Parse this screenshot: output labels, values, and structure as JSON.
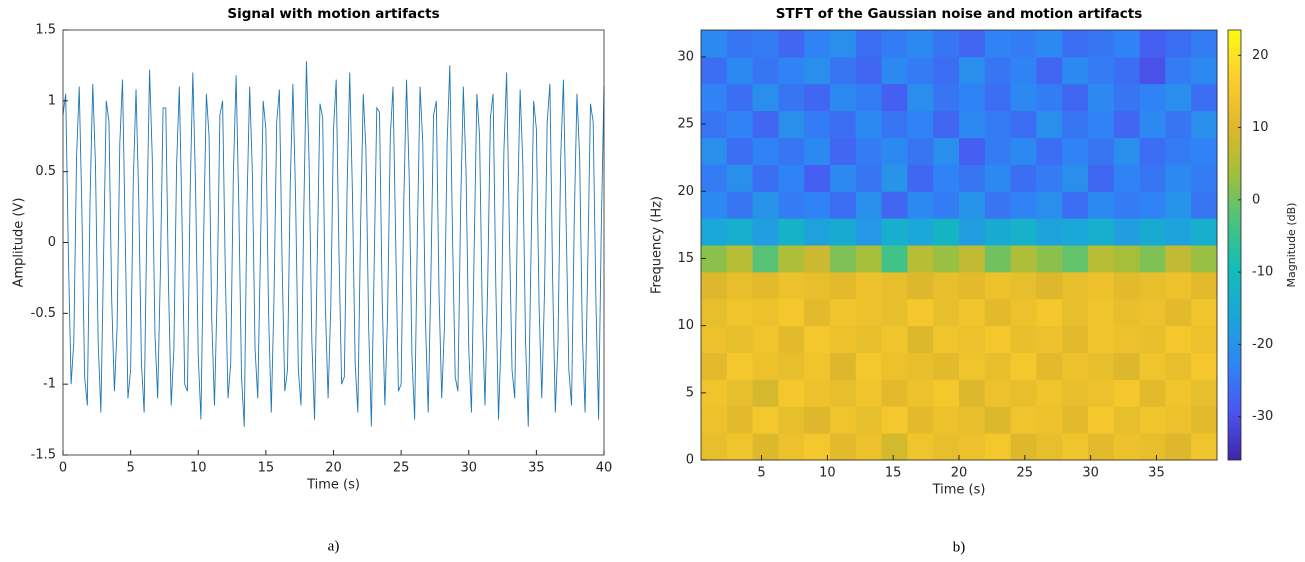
{
  "chart_data": [
    {
      "type": "line",
      "title": "Signal with motion artifacts",
      "xlabel": "Time (s)",
      "ylabel": "Amplitude (V)",
      "caption": "a)",
      "color": "#1f77b4",
      "grid": false,
      "xlim": [
        0,
        40
      ],
      "xticks": [
        0,
        5,
        10,
        15,
        20,
        25,
        30,
        35,
        40
      ],
      "ylim": [
        -1.5,
        1.5
      ],
      "yticks": [
        -1.5,
        -1,
        -0.5,
        0,
        0.5,
        1,
        1.5
      ],
      "x": [
        0,
        0.2,
        0.4,
        0.6,
        0.8,
        1,
        1.2,
        1.4,
        1.6,
        1.8,
        2,
        2.2,
        2.4,
        2.6,
        2.8,
        3,
        3.2,
        3.4,
        3.6,
        3.8,
        4,
        4.2,
        4.4,
        4.6,
        4.8,
        5,
        5.2,
        5.4,
        5.6,
        5.8,
        6,
        6.2,
        6.4,
        6.6,
        6.8,
        7,
        7.2,
        7.4,
        7.6,
        7.8,
        8,
        8.2,
        8.4,
        8.6,
        8.8,
        9,
        9.2,
        9.4,
        9.6,
        9.8,
        10,
        10.2,
        10.4,
        10.6,
        10.8,
        11,
        11.2,
        11.4,
        11.6,
        11.8,
        12,
        12.2,
        12.4,
        12.6,
        12.8,
        13,
        13.2,
        13.4,
        13.6,
        13.8,
        14,
        14.2,
        14.4,
        14.6,
        14.8,
        15,
        15.2,
        15.4,
        15.6,
        15.8,
        16,
        16.2,
        16.4,
        16.6,
        16.8,
        17,
        17.2,
        17.4,
        17.6,
        17.8,
        18,
        18.2,
        18.4,
        18.6,
        18.8,
        19,
        19.2,
        19.4,
        19.6,
        19.8,
        20,
        20.2,
        20.4,
        20.6,
        20.8,
        21,
        21.2,
        21.4,
        21.6,
        21.8,
        22,
        22.2,
        22.4,
        22.6,
        22.8,
        23,
        23.2,
        23.4,
        23.6,
        23.8,
        24,
        24.2,
        24.4,
        24.6,
        24.8,
        25,
        25.2,
        25.4,
        25.6,
        25.8,
        26,
        26.2,
        26.4,
        26.6,
        26.8,
        27,
        27.2,
        27.4,
        27.6,
        27.8,
        28,
        28.2,
        28.4,
        28.6,
        28.8,
        29,
        29.2,
        29.4,
        29.6,
        29.8,
        30,
        30.2,
        30.4,
        30.6,
        30.8,
        31,
        31.2,
        31.4,
        31.6,
        31.8,
        32,
        32.2,
        32.4,
        32.6,
        32.8,
        33,
        33.2,
        33.4,
        33.6,
        33.8,
        34,
        34.2,
        34.4,
        34.6,
        34.8,
        35,
        35.2,
        35.4,
        35.6,
        35.8,
        36,
        36.2,
        36.4,
        36.6,
        36.8,
        37,
        37.2,
        37.4,
        37.6,
        37.8,
        38,
        38.2,
        38.4,
        38.6,
        38.8,
        39,
        39.2,
        39.4,
        39.6,
        39.8,
        40
      ],
      "values": [
        0.9,
        1.05,
        -0.1,
        -1.0,
        -0.7,
        0.6,
        1.1,
        0.2,
        -0.95,
        -1.15,
        0.3,
        1.12,
        0.55,
        -0.7,
        -1.2,
        -0.1,
        1.0,
        0.85,
        -0.4,
        -1.05,
        -0.6,
        0.7,
        1.15,
        0.05,
        -1.1,
        -0.9,
        0.45,
        1.08,
        0.3,
        -0.85,
        -1.2,
        0.15,
        1.22,
        0.6,
        -0.65,
        -1.1,
        -0.2,
        0.95,
        0.95,
        -0.3,
        -1.15,
        -0.75,
        0.55,
        1.1,
        0.15,
        -1.0,
        -1.05,
        0.35,
        1.2,
        0.4,
        -0.8,
        -1.25,
        0.05,
        1.05,
        0.75,
        -0.55,
        -1.15,
        -0.35,
        0.9,
        1.0,
        -0.2,
        -1.1,
        -0.85,
        0.5,
        1.18,
        0.25,
        -0.95,
        -1.3,
        0.25,
        1.1,
        0.5,
        -0.75,
        -1.1,
        -0.05,
        1.0,
        0.8,
        -0.5,
        -1.2,
        -0.4,
        0.85,
        1.08,
        -0.15,
        -1.05,
        -0.9,
        0.4,
        1.12,
        0.3,
        -0.9,
        -1.15,
        0.2,
        1.28,
        0.55,
        -0.7,
        -1.25,
        -0.1,
        0.98,
        0.88,
        -0.45,
        -1.1,
        -0.45,
        0.8,
        1.15,
        -0.05,
        -1.0,
        -0.95,
        0.35,
        1.2,
        0.35,
        -0.85,
        -1.2,
        0.1,
        1.05,
        0.65,
        -0.6,
        -1.3,
        -0.2,
        0.95,
        0.92,
        -0.4,
        -1.15,
        -0.5,
        0.75,
        1.1,
        0.0,
        -1.05,
        -1.0,
        0.3,
        1.15,
        0.45,
        -0.8,
        -1.25,
        0.05,
        1.1,
        0.7,
        -0.55,
        -1.2,
        -0.25,
        0.9,
        1.0,
        -0.35,
        -1.1,
        -0.6,
        0.7,
        1.25,
        0.05,
        -0.95,
        -1.05,
        0.25,
        1.1,
        0.5,
        -0.75,
        -1.2,
        -0.05,
        1.05,
        0.75,
        -0.5,
        -1.15,
        -0.3,
        0.88,
        1.05,
        -0.3,
        -1.25,
        -0.65,
        0.65,
        1.2,
        0.1,
        -0.9,
        -1.1,
        0.2,
        1.08,
        0.55,
        -0.7,
        -1.3,
        -0.1,
        1.0,
        0.8,
        -0.45,
        -1.1,
        -0.35,
        0.85,
        1.12,
        -0.25,
        -1.2,
        -0.7,
        0.6,
        1.15,
        0.15,
        -0.9,
        -1.15,
        0.15,
        1.05,
        0.6,
        -0.65,
        -1.2,
        -0.15,
        0.98,
        0.85,
        -0.4,
        -1.25,
        0.1,
        1.1
      ]
    },
    {
      "type": "heatmap",
      "title": "STFT of the Gaussian noise and motion artifacts",
      "xlabel": "Time (s)",
      "ylabel": "Frequency (Hz)",
      "caption": "b)",
      "colorbar_label": "Magnitude (dB)",
      "xlim": [
        0.4,
        39.6
      ],
      "xticks": [
        5,
        10,
        15,
        20,
        25,
        30,
        35
      ],
      "ylim": [
        0,
        32
      ],
      "yticks": [
        0,
        5,
        10,
        15,
        20,
        25,
        30
      ],
      "clim": [
        -36,
        23.5
      ],
      "cticks": [
        -30,
        -20,
        -10,
        0,
        10,
        20
      ],
      "colormap": [
        "#3e26a8",
        "#4a55f0",
        "#2f85f5",
        "#1ba6d8",
        "#12bdb7",
        "#4ac37f",
        "#a2bf3c",
        "#e0b82b",
        "#fcce2e",
        "#f9fb15"
      ],
      "x": [
        1.38,
        3.34,
        5.3,
        7.26,
        9.22,
        11.18,
        13.14,
        15.1,
        17.06,
        19.02,
        20.98,
        22.94,
        24.9,
        26.86,
        28.82,
        30.78,
        32.74,
        34.7,
        36.66,
        38.62
      ],
      "y": [
        1,
        3,
        5,
        7,
        9,
        11,
        13,
        15,
        17,
        19,
        21,
        23,
        25,
        27,
        29,
        31
      ],
      "z": [
        [
          12,
          14,
          10,
          13,
          15,
          11,
          13,
          9,
          14,
          12,
          13,
          15,
          10,
          12,
          14,
          11,
          13,
          12,
          10,
          14
        ],
        [
          13,
          11,
          15,
          12,
          10,
          14,
          12,
          15,
          11,
          13,
          12,
          10,
          14,
          13,
          11,
          15,
          12,
          14,
          13,
          11
        ],
        [
          14,
          12,
          9,
          15,
          13,
          12,
          14,
          11,
          13,
          15,
          10,
          13,
          12,
          14,
          12,
          13,
          15,
          11,
          14,
          12
        ],
        [
          11,
          15,
          13,
          12,
          14,
          10,
          15,
          13,
          12,
          11,
          14,
          12,
          15,
          11,
          13,
          12,
          10,
          14,
          12,
          15
        ],
        [
          13,
          12,
          14,
          11,
          15,
          13,
          12,
          14,
          10,
          14,
          13,
          15,
          12,
          13,
          11,
          14,
          13,
          12,
          15,
          13
        ],
        [
          12,
          14,
          13,
          15,
          11,
          14,
          13,
          12,
          15,
          12,
          14,
          11,
          13,
          15,
          12,
          14,
          12,
          13,
          11,
          14
        ],
        [
          10,
          12,
          11,
          13,
          12,
          11,
          13,
          12,
          10,
          12,
          11,
          13,
          12,
          10,
          12,
          13,
          11,
          12,
          13,
          11
        ],
        [
          2,
          6,
          -2,
          5,
          8,
          1,
          4,
          -4,
          6,
          3,
          7,
          0,
          5,
          2,
          -1,
          6,
          4,
          1,
          7,
          3
        ],
        [
          -16,
          -14,
          -18,
          -13,
          -17,
          -15,
          -19,
          -14,
          -16,
          -12,
          -18,
          -15,
          -13,
          -17,
          -16,
          -14,
          -18,
          -15,
          -17,
          -14
        ],
        [
          -22,
          -25,
          -20,
          -24,
          -23,
          -26,
          -21,
          -27,
          -22,
          -24,
          -20,
          -25,
          -23,
          -21,
          -26,
          -22,
          -24,
          -23,
          -20,
          -25
        ],
        [
          -24,
          -21,
          -26,
          -23,
          -28,
          -22,
          -25,
          -20,
          -27,
          -23,
          -25,
          -22,
          -26,
          -24,
          -21,
          -27,
          -23,
          -25,
          -22,
          -24
        ],
        [
          -21,
          -26,
          -23,
          -25,
          -22,
          -27,
          -24,
          -22,
          -25,
          -21,
          -28,
          -24,
          -22,
          -26,
          -23,
          -25,
          -21,
          -26,
          -24,
          -23
        ],
        [
          -25,
          -23,
          -27,
          -21,
          -24,
          -26,
          -22,
          -25,
          -23,
          -27,
          -22,
          -24,
          -26,
          -21,
          -25,
          -23,
          -27,
          -22,
          -25,
          -21
        ],
        [
          -23,
          -26,
          -21,
          -25,
          -27,
          -22,
          -24,
          -28,
          -21,
          -25,
          -23,
          -26,
          -22,
          -24,
          -27,
          -22,
          -25,
          -23,
          -21,
          -26
        ],
        [
          -26,
          -22,
          -25,
          -23,
          -21,
          -25,
          -27,
          -22,
          -24,
          -26,
          -21,
          -25,
          -23,
          -27,
          -22,
          -24,
          -26,
          -30,
          -24,
          -22
        ],
        [
          -22,
          -25,
          -24,
          -27,
          -23,
          -21,
          -26,
          -24,
          -22,
          -25,
          -27,
          -23,
          -24,
          -22,
          -26,
          -25,
          -23,
          -28,
          -26,
          -24
        ]
      ]
    }
  ]
}
